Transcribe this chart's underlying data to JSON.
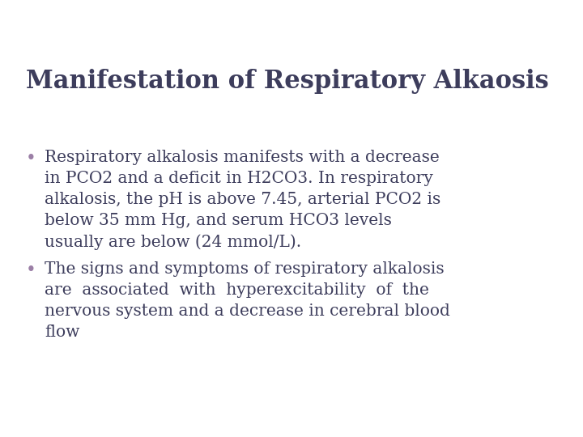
{
  "title": "Manifestation of Respiratory Alkaosis",
  "title_color": "#3d3d5c",
  "title_fontsize": 22,
  "bg_color": "#ffffff",
  "header_dark_color": "#3d4060",
  "header_teal_color": "#3d8a8c",
  "accent_light_color": "#9cc4c8",
  "accent_lighter_color": "#b8d4d6",
  "bullet_color": "#9b7fa6",
  "text_color": "#3d3d5c",
  "bullet1_lines": [
    "Respiratory alkalosis manifests with a decrease",
    "in PCO2 and a deficit in H2CO3. In respiratory",
    "alkalosis, the pH is above 7.45, arterial PCO2 is",
    "below 35 mm Hg, and serum HCO3 levels",
    "usually are below (24 mmol/L)."
  ],
  "bullet2_lines": [
    "The signs and symptoms of respiratory alkalosis",
    "are  associated  with  hyperexcitability  of  the",
    "nervous system and a decrease in cerebral blood",
    "flow"
  ],
  "body_fontsize": 14.5
}
